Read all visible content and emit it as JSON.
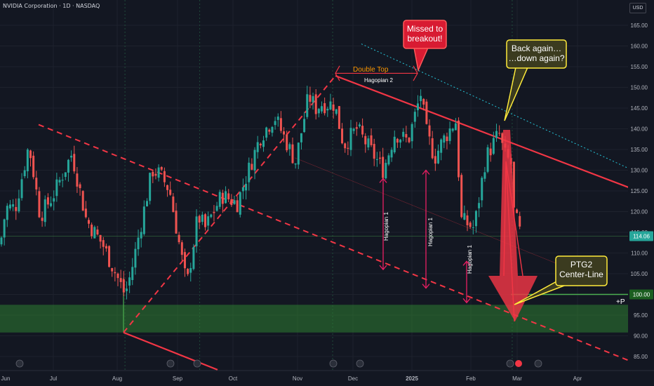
{
  "header": {
    "title": "NVIDIA Corporation · 1D · NASDAQ"
  },
  "currency": "USD",
  "colors": {
    "background": "#131722",
    "up": "#26a69a",
    "down": "#ef5350",
    "trend": "#f23645",
    "green_zone": "#2e7d32",
    "callout": "#ffeb3b"
  },
  "chart_data": {
    "type": "candlestick",
    "x": [
      "Jun",
      "Jul",
      "Aug",
      "Sep",
      "Oct",
      "Nov",
      "Dec",
      "2025",
      "Feb",
      "Mar",
      "Apr"
    ],
    "y_ticks": [
      85,
      90,
      95,
      100,
      105,
      110,
      115,
      120,
      125,
      130,
      135,
      140,
      145,
      150,
      155,
      160,
      165
    ],
    "ylim": [
      82,
      168
    ],
    "last_price": "114.06",
    "level_100": "100.00",
    "anchors": [
      {
        "d": "2024-06-03",
        "p": 112
      },
      {
        "d": "2024-06-06",
        "p": 121
      },
      {
        "d": "2024-06-11",
        "p": 121
      },
      {
        "d": "2024-06-18",
        "p": 136
      },
      {
        "d": "2024-06-20",
        "p": 131
      },
      {
        "d": "2024-06-24",
        "p": 119
      },
      {
        "d": "2024-07-01",
        "p": 124
      },
      {
        "d": "2024-07-10",
        "p": 134
      },
      {
        "d": "2024-07-17",
        "p": 118
      },
      {
        "d": "2024-07-25",
        "p": 112
      },
      {
        "d": "2024-08-05",
        "p": 100
      },
      {
        "d": "2024-08-08",
        "p": 105
      },
      {
        "d": "2024-08-19",
        "p": 130
      },
      {
        "d": "2024-08-23",
        "p": 129
      },
      {
        "d": "2024-08-28",
        "p": 125
      },
      {
        "d": "2024-09-06",
        "p": 102
      },
      {
        "d": "2024-09-12",
        "p": 119
      },
      {
        "d": "2024-09-16",
        "p": 116
      },
      {
        "d": "2024-09-25",
        "p": 124
      },
      {
        "d": "2024-10-03",
        "p": 122
      },
      {
        "d": "2024-10-14",
        "p": 138
      },
      {
        "d": "2024-10-21",
        "p": 143
      },
      {
        "d": "2024-10-31",
        "p": 132
      },
      {
        "d": "2024-11-07",
        "p": 148
      },
      {
        "d": "2024-11-11",
        "p": 145
      },
      {
        "d": "2024-11-14",
        "p": 146
      },
      {
        "d": "2024-11-21",
        "p": 146
      },
      {
        "d": "2024-11-26",
        "p": 136
      },
      {
        "d": "2024-12-03",
        "p": 140
      },
      {
        "d": "2024-12-10",
        "p": 135
      },
      {
        "d": "2024-12-17",
        "p": 130
      },
      {
        "d": "2024-12-23",
        "p": 139
      },
      {
        "d": "2024-12-30",
        "p": 137
      },
      {
        "d": "2025-01-06",
        "p": 149
      },
      {
        "d": "2025-01-08",
        "p": 140
      },
      {
        "d": "2025-01-13",
        "p": 133
      },
      {
        "d": "2025-01-17",
        "p": 137
      },
      {
        "d": "2025-01-24",
        "p": 142
      },
      {
        "d": "2025-01-27",
        "p": 118
      },
      {
        "d": "2025-02-03",
        "p": 116
      },
      {
        "d": "2025-02-10",
        "p": 133
      },
      {
        "d": "2025-02-18",
        "p": 139
      },
      {
        "d": "2025-02-21",
        "p": 134
      },
      {
        "d": "2025-02-26",
        "p": 131
      },
      {
        "d": "2025-02-27",
        "p": 120
      },
      {
        "d": "2025-03-03",
        "p": 114
      },
      {
        "d": "2025-03-06",
        "p": 110
      },
      {
        "d": "2025-03-07",
        "p": 112
      }
    ],
    "annotations": [
      {
        "id": "double-top",
        "text": "Double Top"
      },
      {
        "id": "hagopian-2",
        "text": "Hagopian 2"
      },
      {
        "id": "hagopian-1a",
        "text": "Hagopian 1"
      },
      {
        "id": "hagopian-1b",
        "text": "Hagopian 1"
      },
      {
        "id": "hagopian-1c",
        "text": "Hagopian 1"
      },
      {
        "id": "plus-p",
        "text": "+P"
      }
    ],
    "callouts": [
      {
        "id": "missed",
        "lines": [
          "Missed to",
          "breakout!"
        ]
      },
      {
        "id": "back-again",
        "lines": [
          "Back again…",
          "…down again?"
        ]
      },
      {
        "id": "ptg2",
        "lines": [
          "PTG2",
          "Center-Line"
        ]
      }
    ]
  }
}
